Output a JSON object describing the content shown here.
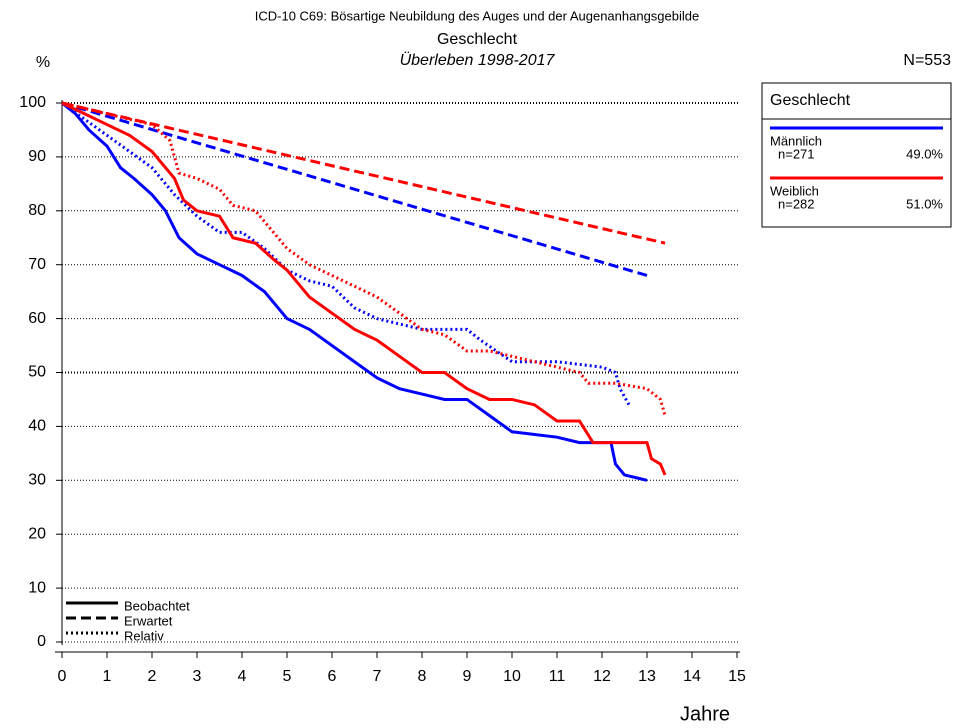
{
  "chart_data": {
    "type": "line",
    "title": "ICD-10 C69: Bösartige Neubildung des Auges und der Augenanhangsgebilde",
    "subtitle": "Geschlecht",
    "subtitle2": "Überleben 1998-2017",
    "y_label": "%",
    "x_label": "Jahre",
    "n_label": "N=553",
    "xlim": [
      0,
      15
    ],
    "ylim": [
      0,
      100
    ],
    "xticks": [
      0,
      1,
      2,
      3,
      4,
      5,
      6,
      7,
      8,
      9,
      10,
      11,
      12,
      13,
      14,
      15
    ],
    "yticks": [
      0,
      10,
      20,
      30,
      40,
      50,
      60,
      70,
      80,
      90,
      100
    ],
    "grid": true,
    "legend_title": "Geschlecht",
    "groups": [
      {
        "name": "Männlich",
        "n_label": "n=271",
        "share_label": "49.0%",
        "color": "#0000ff"
      },
      {
        "name": "Weiblich",
        "n_label": "n=282",
        "share_label": "51.0%",
        "color": "#ff0000"
      }
    ],
    "styles": [
      {
        "name": "Beobachtet",
        "dash": "none"
      },
      {
        "name": "Erwartet",
        "dash": "10 5"
      },
      {
        "name": "Relativ",
        "dash": "2 3"
      }
    ],
    "series": [
      {
        "group": 0,
        "style": 0,
        "x": [
          0,
          0.3,
          0.6,
          1,
          1.3,
          1.6,
          2,
          2.3,
          2.6,
          3,
          3.5,
          4,
          4.5,
          5,
          5.5,
          6,
          6.5,
          7,
          7.5,
          8,
          8.5,
          9,
          9.5,
          10,
          11,
          11.5,
          12.2,
          12.3,
          12.5,
          13
        ],
        "values": [
          100,
          98,
          95,
          92,
          88,
          86,
          83,
          80,
          75,
          72,
          70,
          68,
          65,
          60,
          58,
          55,
          52,
          49,
          47,
          46,
          45,
          45,
          42,
          39,
          38,
          37,
          37,
          33,
          31,
          30
        ]
      },
      {
        "group": 0,
        "style": 1,
        "x": [
          0,
          13
        ],
        "values": [
          100,
          68
        ]
      },
      {
        "group": 0,
        "style": 2,
        "x": [
          0,
          0.5,
          1,
          1.5,
          2,
          2.5,
          3,
          3.5,
          4,
          4.5,
          5,
          5.5,
          6,
          6.5,
          7,
          7.5,
          8,
          8.5,
          9,
          9.3,
          10,
          11,
          12,
          12.3,
          12.4,
          12.6
        ],
        "values": [
          100,
          97,
          94,
          91,
          88,
          83,
          79,
          76,
          76,
          73,
          69,
          67,
          66,
          62,
          60,
          59,
          58,
          58,
          58,
          56,
          52,
          52,
          51,
          50,
          47,
          44
        ]
      },
      {
        "group": 1,
        "style": 0,
        "x": [
          0,
          0.5,
          1,
          1.5,
          2,
          2.5,
          2.7,
          3,
          3.5,
          3.8,
          4.3,
          4.7,
          5,
          5.5,
          6,
          6.5,
          7,
          7.5,
          8,
          8.5,
          9,
          9.5,
          10,
          10.5,
          11,
          11.5,
          11.8,
          12,
          13,
          13.1,
          13.3,
          13.4
        ],
        "values": [
          100,
          98,
          96,
          94,
          91,
          86,
          82,
          80,
          79,
          75,
          74,
          71,
          69,
          64,
          61,
          58,
          56,
          53,
          50,
          50,
          47,
          45,
          45,
          44,
          41,
          41,
          37,
          37,
          37,
          34,
          33,
          31
        ]
      },
      {
        "group": 1,
        "style": 1,
        "x": [
          0,
          13.4
        ],
        "values": [
          100,
          74
        ]
      },
      {
        "group": 1,
        "style": 2,
        "x": [
          0,
          0.5,
          1,
          1.5,
          2,
          2.4,
          2.6,
          3,
          3.5,
          3.8,
          4.3,
          4.7,
          5,
          5.5,
          6,
          6.5,
          7,
          7.5,
          8,
          8.5,
          9,
          9.5,
          10,
          11,
          11.5,
          11.7,
          12.3,
          13,
          13.3,
          13.4
        ],
        "values": [
          100,
          99,
          98,
          97,
          96,
          93,
          87,
          86,
          84,
          81,
          80,
          76,
          73,
          70,
          68,
          66,
          64,
          61,
          58,
          57,
          54,
          54,
          53,
          51,
          50,
          48,
          48,
          47,
          45,
          42
        ]
      }
    ]
  }
}
